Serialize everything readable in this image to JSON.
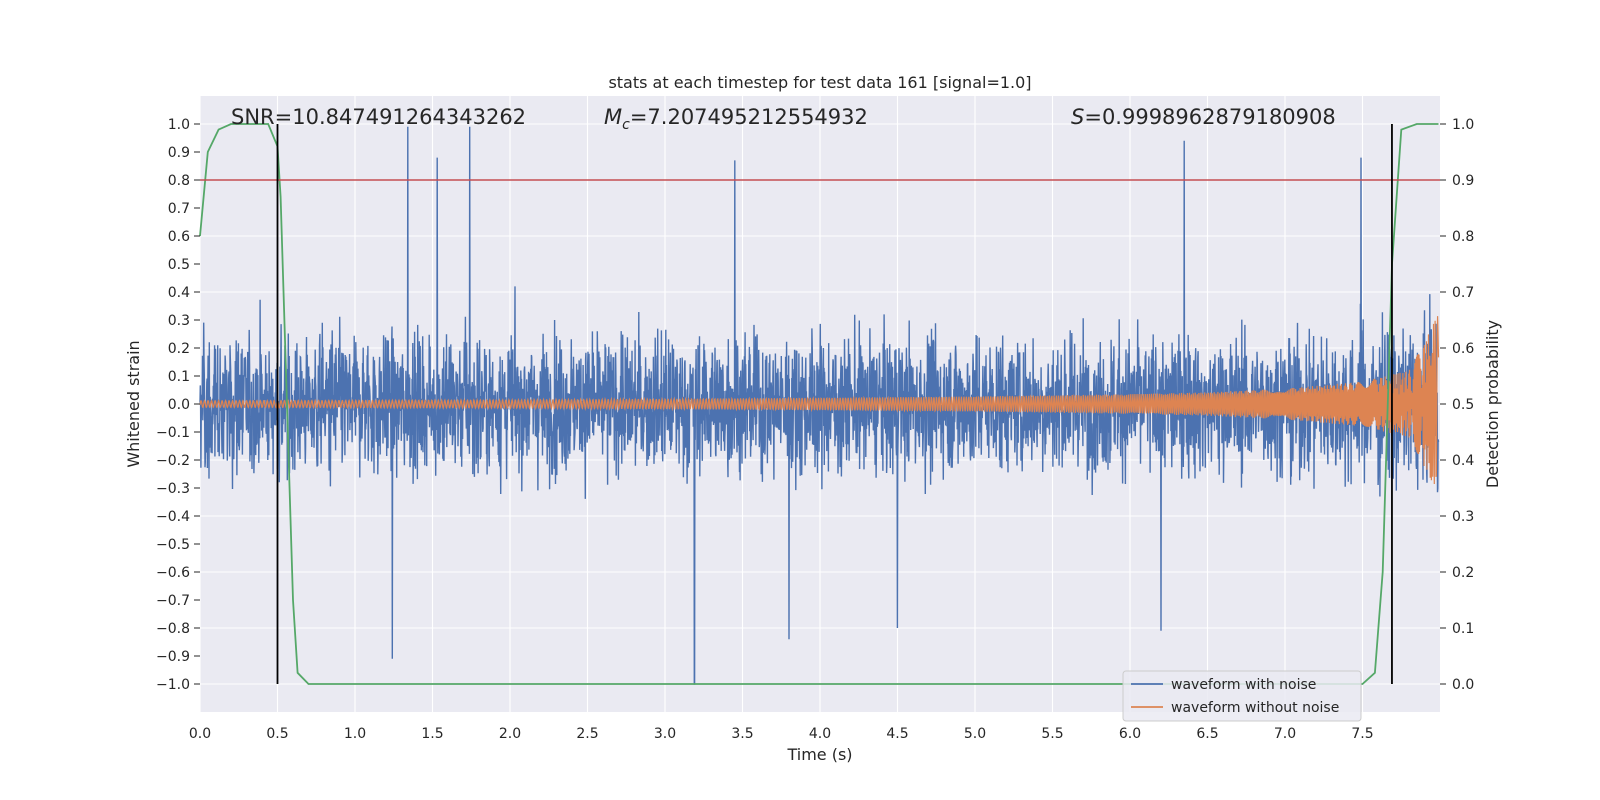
{
  "chart_data": {
    "type": "line",
    "title": "stats at each timestep for test data 161 [signal=1.0]",
    "xlabel": "Time (s)",
    "ylabel": "Whitened strain",
    "ylabel_right": "Detection probability",
    "xlim": [
      0.0,
      8.0
    ],
    "ylim": [
      -1.1,
      1.1
    ],
    "ylim_right": [
      -0.05,
      1.05
    ],
    "x_ticks": [
      "0.0",
      "0.5",
      "1.0",
      "1.5",
      "2.0",
      "2.5",
      "3.0",
      "3.5",
      "4.0",
      "4.5",
      "5.0",
      "5.5",
      "6.0",
      "6.5",
      "7.0",
      "7.5"
    ],
    "y_ticks": [
      "1.0",
      "0.9",
      "0.8",
      "0.7",
      "0.6",
      "0.5",
      "0.4",
      "0.3",
      "0.2",
      "0.1",
      "0.0",
      "−0.1",
      "−0.2",
      "−0.3",
      "−0.4",
      "−0.5",
      "−0.6",
      "−0.7",
      "−0.8",
      "−0.9",
      "−1.0"
    ],
    "y_ticks_right": [
      "1.0",
      "0.9",
      "0.8",
      "0.7",
      "0.6",
      "0.5",
      "0.4",
      "0.3",
      "0.2",
      "0.1",
      "0.0"
    ],
    "grid": true,
    "legend_position": "lower-right",
    "annotations": {
      "snr": "SNR=10.847491264343262",
      "mc_prefix": "M",
      "mc_sub": "c",
      "mc_value": "=7.207495212554932",
      "s_prefix": "S",
      "s_value": "=0.9998962879180908"
    },
    "threshold": 0.9,
    "vertical_lines_x": [
      0.5,
      7.69
    ],
    "series": [
      {
        "name": "waveform with noise",
        "color": "#4c72b0",
        "description_envelope": {
          "x": [
            0.0,
            1.0,
            2.0,
            3.0,
            4.0,
            5.0,
            6.0,
            6.5,
            7.0,
            7.5,
            7.99
          ],
          "typical_amplitude": [
            0.45,
            0.45,
            0.45,
            0.45,
            0.45,
            0.45,
            0.45,
            0.45,
            0.45,
            0.5,
            0.55
          ]
        },
        "peaks": [
          {
            "x": 1.34,
            "y": 0.99
          },
          {
            "x": 1.53,
            "y": 0.88
          },
          {
            "x": 1.74,
            "y": 0.99
          },
          {
            "x": 3.45,
            "y": 0.87
          },
          {
            "x": 6.35,
            "y": 0.94
          },
          {
            "x": 7.49,
            "y": 0.88
          },
          {
            "x": 1.24,
            "y": -0.91
          },
          {
            "x": 3.19,
            "y": -1.0
          },
          {
            "x": 3.8,
            "y": -0.84
          },
          {
            "x": 4.5,
            "y": -0.8
          },
          {
            "x": 6.2,
            "y": -0.81
          }
        ]
      },
      {
        "name": "waveform without noise",
        "color": "#dd8452",
        "description_envelope": {
          "x": [
            0.0,
            1.0,
            2.0,
            3.0,
            4.0,
            5.0,
            6.0,
            6.5,
            7.0,
            7.5,
            7.8,
            7.99
          ],
          "amplitude": [
            0.012,
            0.013,
            0.015,
            0.018,
            0.022,
            0.027,
            0.035,
            0.042,
            0.055,
            0.08,
            0.12,
            0.32
          ]
        }
      },
      {
        "name": "detection probability",
        "axis": "right",
        "color": "#55a868",
        "x": [
          0.0,
          0.05,
          0.12,
          0.2,
          0.3,
          0.44,
          0.5,
          0.52,
          0.6,
          0.63,
          0.7,
          1.0,
          2.0,
          3.0,
          4.0,
          5.0,
          6.0,
          7.0,
          7.5,
          7.58,
          7.63,
          7.69,
          7.75,
          7.85,
          7.99
        ],
        "y": [
          0.8,
          0.95,
          0.99,
          1.0,
          1.0,
          1.0,
          0.96,
          0.87,
          0.15,
          0.02,
          0.0,
          0.0,
          0.0,
          0.0,
          0.0,
          0.0,
          0.0,
          0.0,
          0.0,
          0.02,
          0.2,
          0.75,
          0.99,
          1.0,
          1.0
        ]
      }
    ]
  }
}
